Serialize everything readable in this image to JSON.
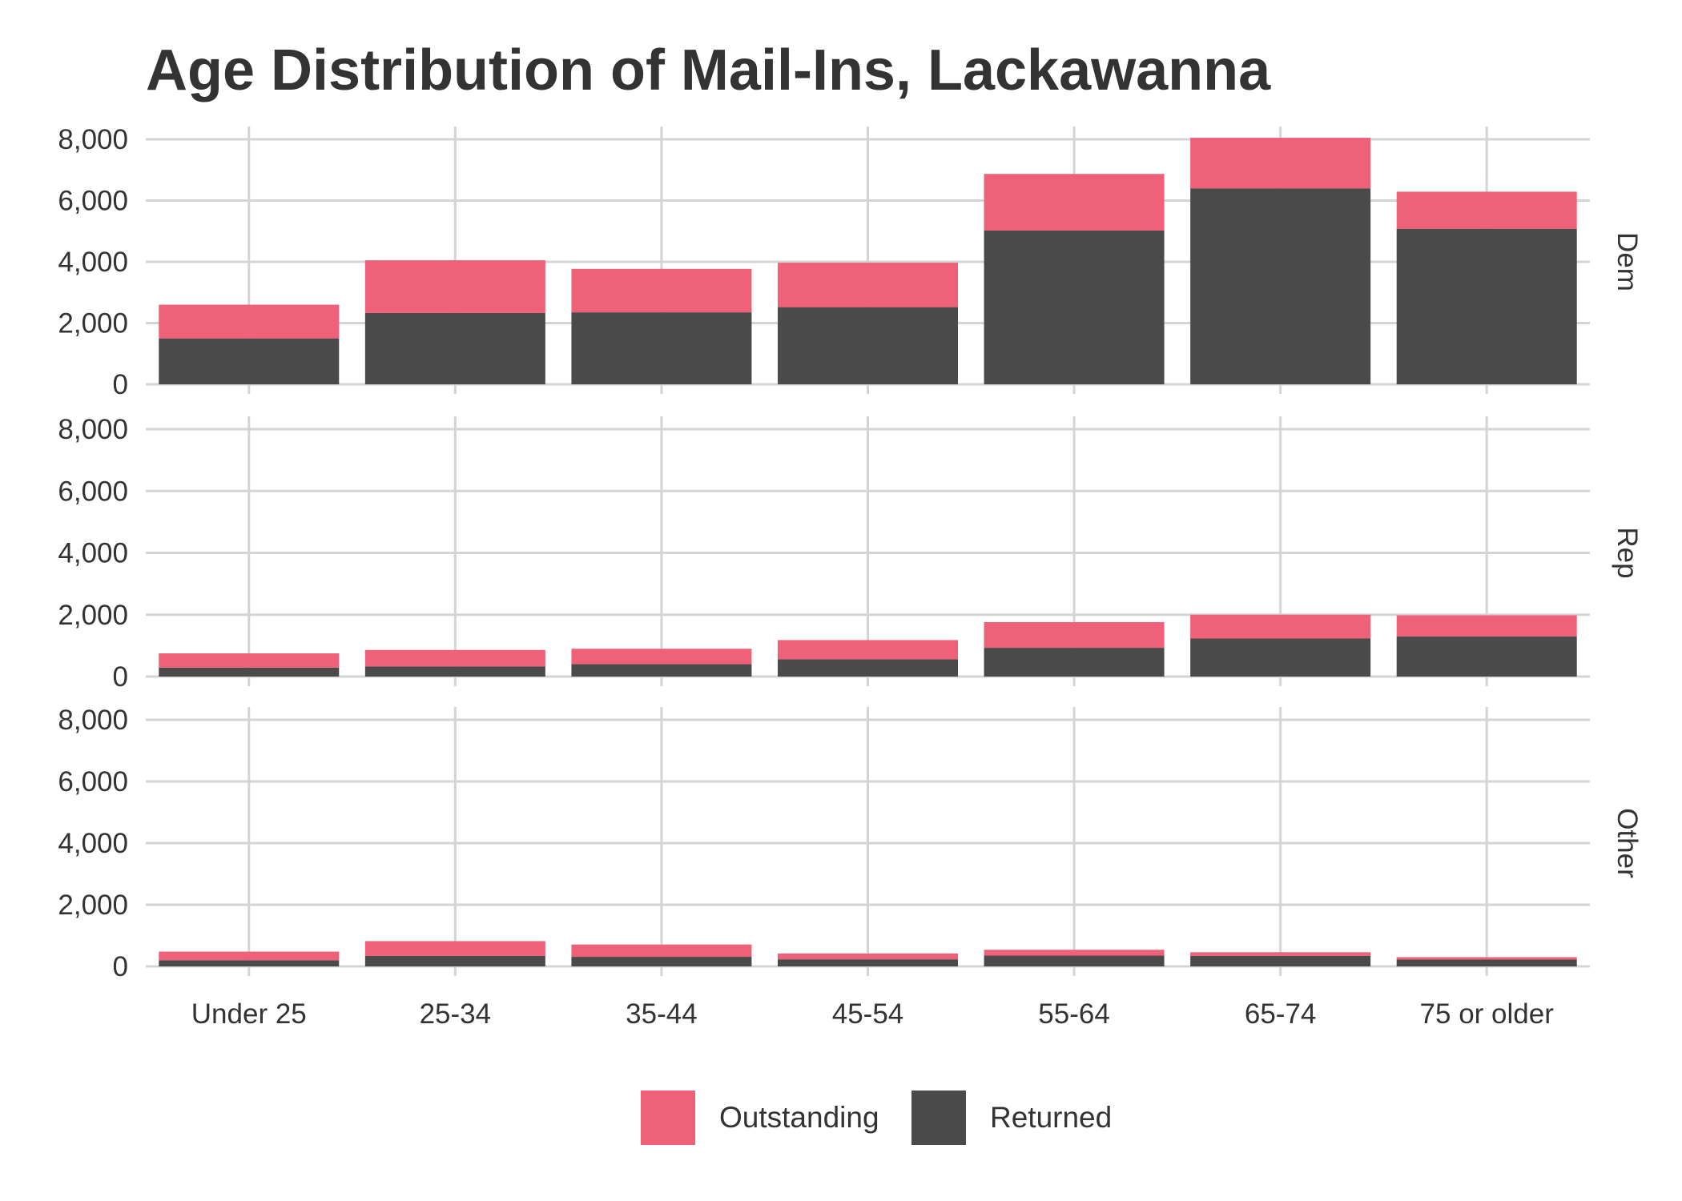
{
  "chart_data": {
    "type": "bar",
    "stacked": true,
    "title": "Age Distribution of Mail-Ins, Lackawanna",
    "xlabel": "",
    "ylabel": "",
    "categories": [
      "Under 25",
      "25-34",
      "35-44",
      "45-54",
      "55-64",
      "65-74",
      "75 or older"
    ],
    "ylim": [
      0,
      8000
    ],
    "yticks": [
      0,
      2000,
      4000,
      6000,
      8000
    ],
    "ytick_labels": [
      "0",
      "2,000",
      "4,000",
      "6,000",
      "8,000"
    ],
    "grid": true,
    "legend_position": "bottom",
    "series_colors": {
      "Outstanding": "#ef6079",
      "Returned": "#4a4a4a"
    },
    "legend": [
      {
        "name": "Outstanding",
        "color": "#ef6079"
      },
      {
        "name": "Returned",
        "color": "#4a4a4a"
      }
    ],
    "panels": [
      {
        "label": "Dem",
        "series": [
          {
            "name": "Returned",
            "values": [
              1500,
              2330,
              2350,
              2520,
              5020,
              6400,
              5080
            ]
          },
          {
            "name": "Outstanding",
            "values": [
              1100,
              1720,
              1420,
              1450,
              1850,
              1650,
              1210
            ]
          }
        ]
      },
      {
        "label": "Rep",
        "series": [
          {
            "name": "Returned",
            "values": [
              290,
              330,
              400,
              560,
              930,
              1230,
              1300
            ]
          },
          {
            "name": "Outstanding",
            "values": [
              460,
              530,
              500,
              620,
              830,
              770,
              680
            ]
          }
        ]
      },
      {
        "label": "Other",
        "series": [
          {
            "name": "Returned",
            "values": [
              200,
              340,
              310,
              230,
              350,
              340,
              220
            ]
          },
          {
            "name": "Outstanding",
            "values": [
              280,
              480,
              400,
              190,
              190,
              120,
              80
            ]
          }
        ]
      }
    ]
  }
}
